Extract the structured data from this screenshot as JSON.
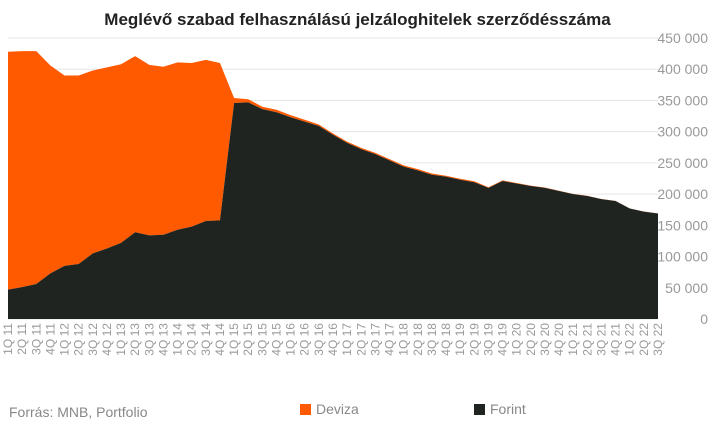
{
  "title": "Meglévő szabad felhasználású jelzáloghitelek szerződésszáma",
  "source": "Forrás: MNB, Portfolio",
  "colors": {
    "deviza": "#ff5a00",
    "forint": "#1f2420",
    "axis_text": "#999999"
  },
  "chart_data": {
    "type": "area",
    "stacked": true,
    "x": [
      "1Q 11",
      "2Q 11",
      "3Q 11",
      "4Q 11",
      "1Q 12",
      "2Q 12",
      "3Q 12",
      "4Q 12",
      "1Q 13",
      "2Q 13",
      "3Q 13",
      "4Q 13",
      "1Q 14",
      "2Q 14",
      "3Q 14",
      "4Q 14",
      "1Q 15",
      "2Q 15",
      "3Q 15",
      "4Q 15",
      "1Q 16",
      "2Q 16",
      "3Q 16",
      "4Q 16",
      "1Q 17",
      "2Q 17",
      "3Q 17",
      "4Q 17",
      "1Q 18",
      "2Q 18",
      "3Q 18",
      "4Q 18",
      "1Q 19",
      "2Q 19",
      "3Q 19",
      "4Q 19",
      "1Q 20",
      "2Q 20",
      "3Q 20",
      "4Q 20",
      "1Q 21",
      "2Q 21",
      "3Q 21",
      "4Q 21",
      "1Q 22",
      "2Q 22",
      "3Q 22"
    ],
    "series": [
      {
        "name": "Forint",
        "color": "#1f2420",
        "values": [
          47000,
          51000,
          56000,
          73000,
          85000,
          88000,
          105000,
          113000,
          122000,
          139000,
          134000,
          135000,
          143000,
          148000,
          157000,
          158000,
          346000,
          347000,
          336000,
          331000,
          323000,
          316000,
          309000,
          295000,
          282000,
          272000,
          264000,
          254000,
          244000,
          238000,
          231000,
          228000,
          223000,
          219000,
          210000,
          221000,
          217000,
          213000,
          210000,
          205000,
          200000,
          197000,
          192000,
          189000,
          177000,
          172000,
          169000
        ]
      },
      {
        "name": "Deviza",
        "color": "#ff5a00",
        "values": [
          381000,
          378000,
          373000,
          333000,
          305000,
          302000,
          293000,
          290000,
          286000,
          282000,
          273000,
          269000,
          268000,
          262000,
          258000,
          252000,
          8000,
          5000,
          4000,
          4000,
          3500,
          3000,
          2500,
          2000,
          2000,
          2000,
          2000,
          2000,
          2000,
          2000,
          2000,
          1500,
          1500,
          1500,
          1000,
          1000,
          800,
          600,
          500,
          400,
          300,
          300,
          200,
          200,
          100,
          100,
          100
        ]
      }
    ],
    "y_ticks": [
      "0",
      "50 000",
      "100 000",
      "150 000",
      "200 000",
      "250 000",
      "300 000",
      "350 000",
      "400 000",
      "450 000"
    ],
    "ylim": [
      0,
      450000
    ],
    "y_axis_side": "right",
    "legend": {
      "placement": "bottom",
      "entries": [
        "Deviza",
        "Forint"
      ]
    }
  }
}
